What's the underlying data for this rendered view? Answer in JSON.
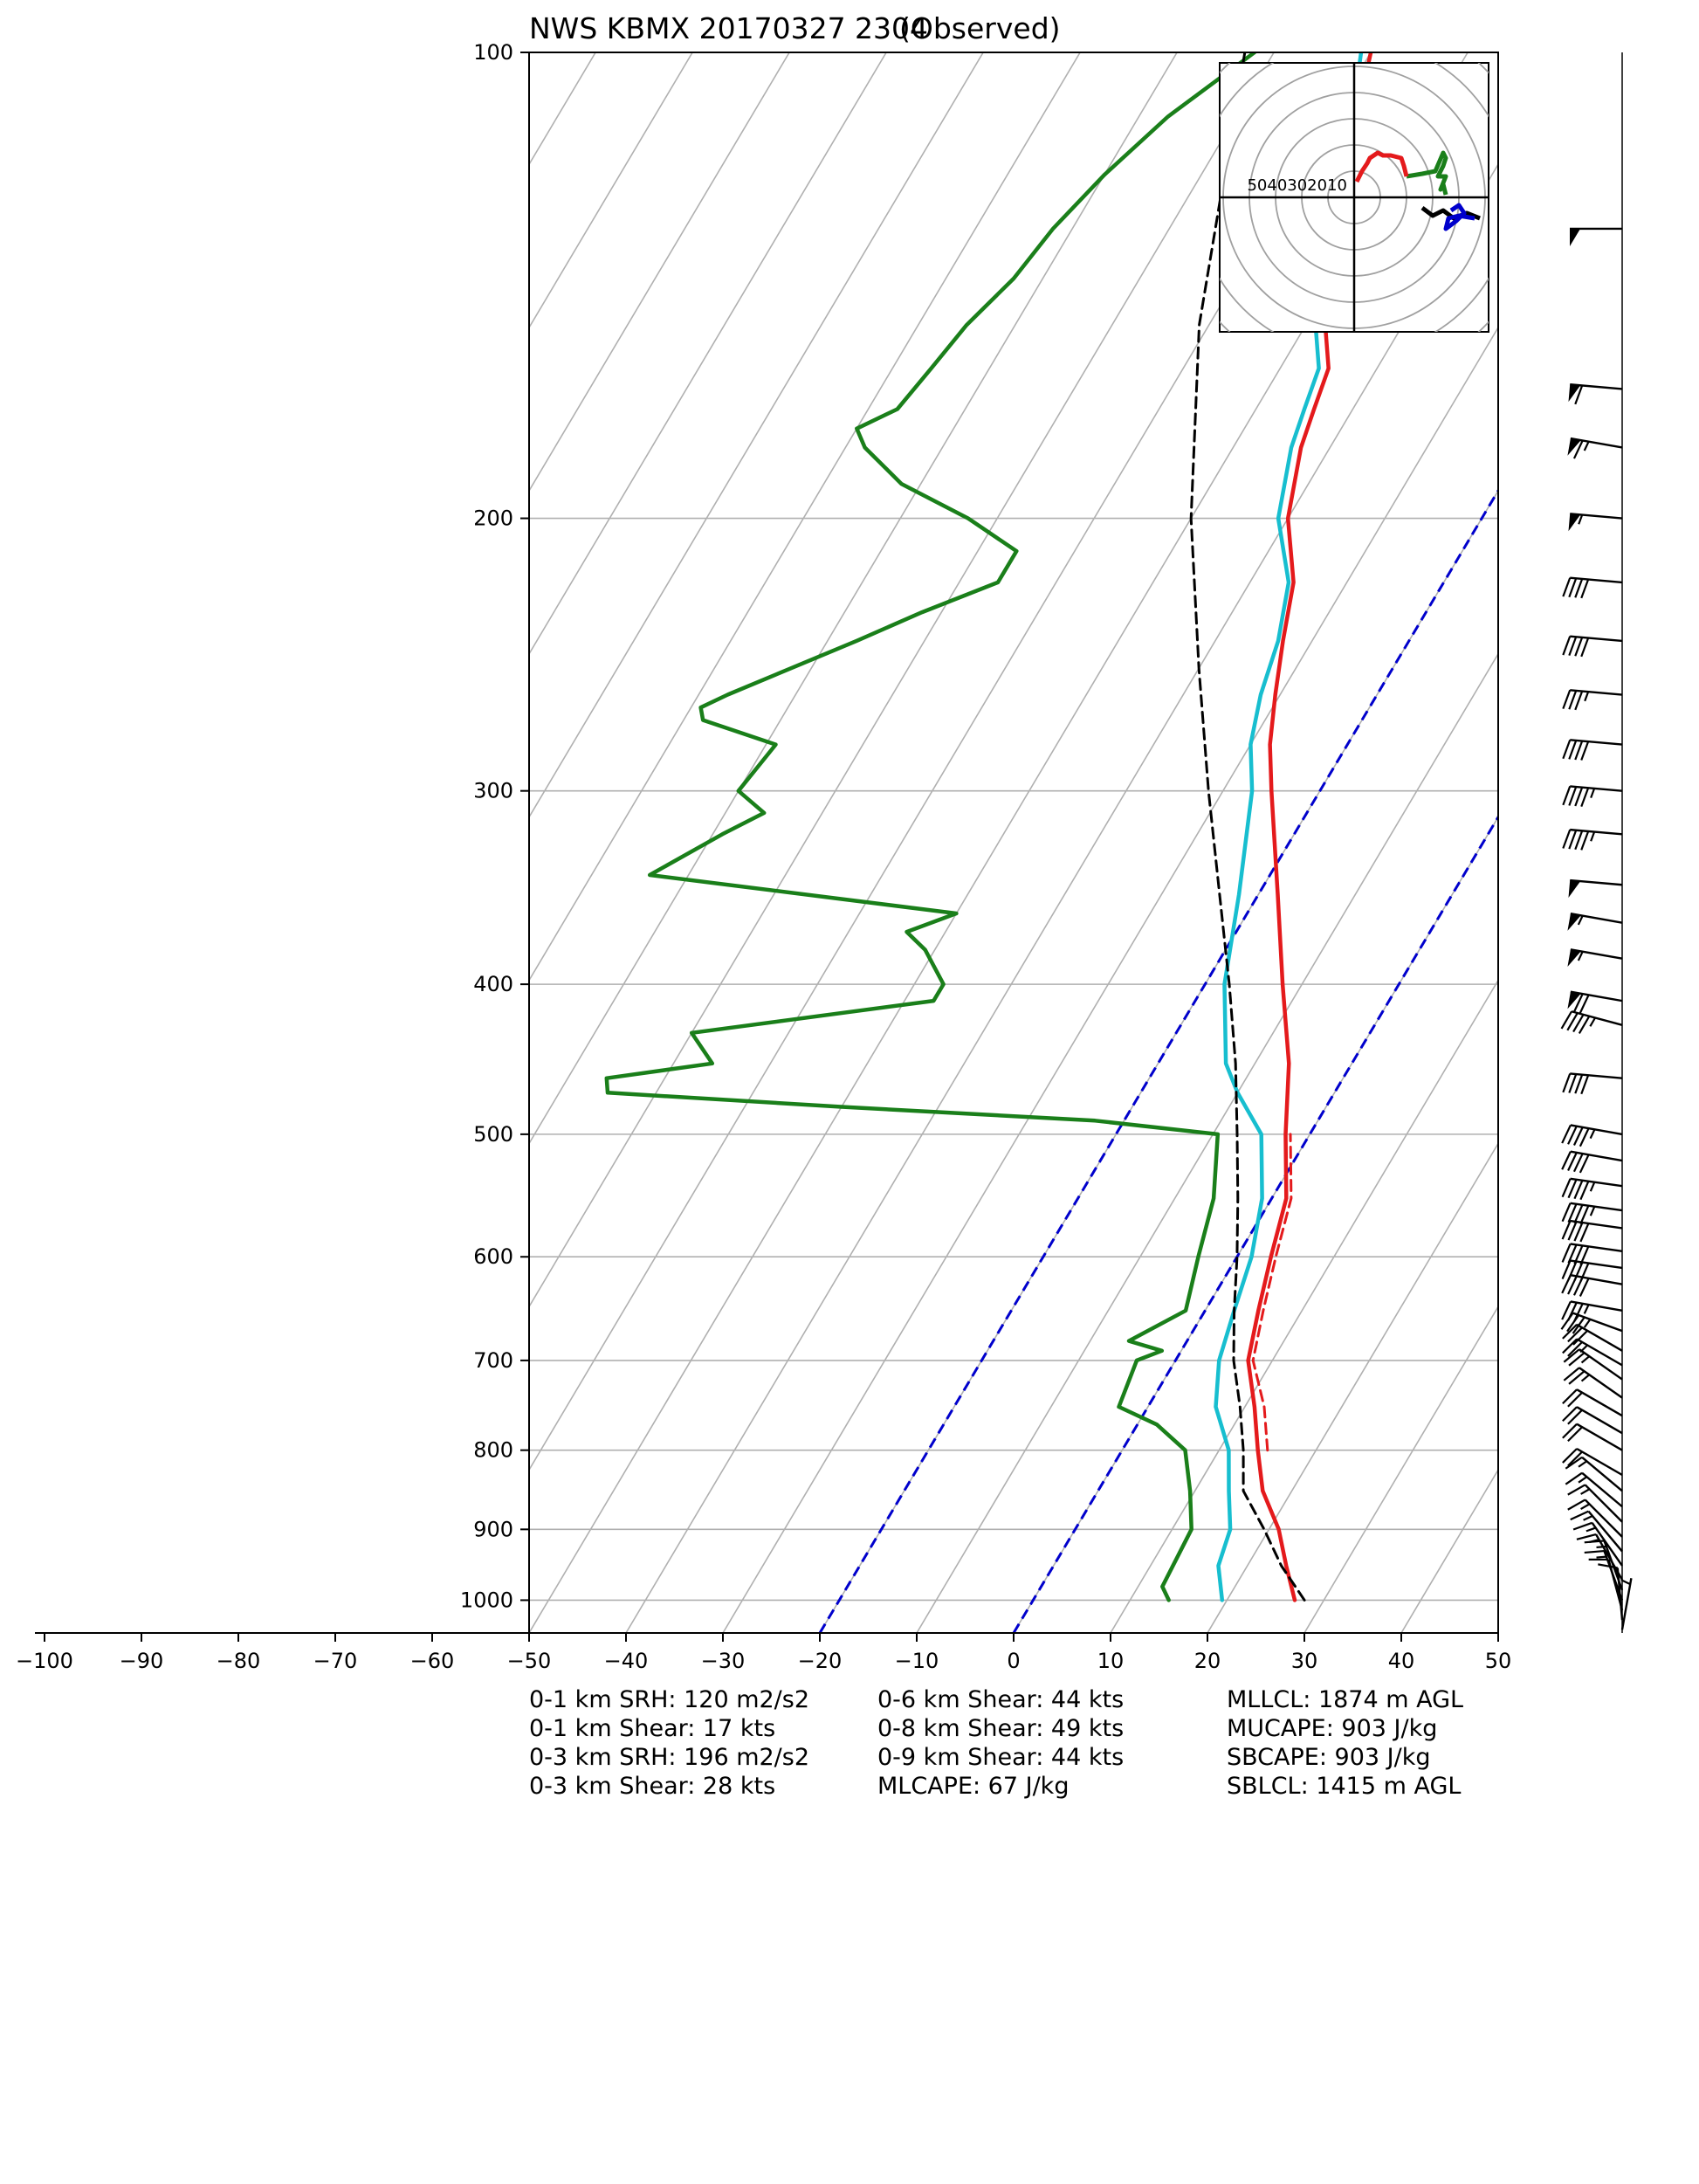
{
  "chart_data": {
    "type": "line",
    "title": "NWS KBMX 20170327 2304",
    "subtitle": "(Observed)",
    "xlabel": "",
    "ylabel": "",
    "x_ticks": [
      -100,
      -90,
      -80,
      -70,
      -60,
      -50,
      -40,
      -30,
      -20,
      -10,
      0,
      10,
      20,
      30,
      40,
      50
    ],
    "x_tick_labels": [
      "−100",
      "−90",
      "−80",
      "−70",
      "−60",
      "−50",
      "−40",
      "−30",
      "−20",
      "−10",
      "0",
      "10",
      "20",
      "30",
      "40",
      "50"
    ],
    "y_ticks": [
      100,
      200,
      300,
      400,
      500,
      600,
      700,
      800,
      900,
      1000
    ],
    "y_tick_labels": [
      "100",
      "200",
      "300",
      "400",
      "500",
      "600",
      "700",
      "800",
      "900",
      "1000"
    ],
    "xlim": [
      -50,
      50
    ],
    "ylim_pressure": [
      1050,
      100
    ],
    "y_scale": "log",
    "skew": true,
    "grid": true,
    "series": [
      {
        "color": "#e41a1c",
        "values": [
          [
            1000,
            27
          ],
          [
            950,
            24
          ],
          [
            900,
            21
          ],
          [
            850,
            17
          ],
          [
            800,
            14
          ],
          [
            750,
            11
          ],
          [
            700,
            7.5
          ],
          [
            650,
            5.5
          ],
          [
            600,
            3.5
          ],
          [
            550,
            1.5
          ],
          [
            500,
            -2.5
          ],
          [
            450,
            -6.5
          ],
          [
            400,
            -12
          ],
          [
            350,
            -18
          ],
          [
            300,
            -25
          ],
          [
            280,
            -28
          ],
          [
            260,
            -30.5
          ],
          [
            240,
            -33
          ],
          [
            220,
            -35.5
          ],
          [
            200,
            -40
          ],
          [
            180,
            -43
          ],
          [
            170,
            -44
          ],
          [
            160,
            -45
          ],
          [
            150,
            -48
          ],
          [
            140,
            -50
          ],
          [
            130,
            -52.5
          ],
          [
            120,
            -55
          ],
          [
            110,
            -57.5
          ],
          [
            100,
            -60
          ]
        ]
      },
      {
        "color": "#e41a1c",
        "dash": true,
        "values": [
          [
            800,
            15
          ],
          [
            750,
            12
          ],
          [
            700,
            8
          ],
          [
            650,
            6
          ],
          [
            600,
            4
          ],
          [
            550,
            2
          ],
          [
            500,
            -2
          ]
        ]
      },
      {
        "color": "#17becf",
        "values": [
          [
            1000,
            19.5
          ],
          [
            950,
            17
          ],
          [
            900,
            16
          ],
          [
            850,
            13.5
          ],
          [
            800,
            11
          ],
          [
            750,
            7
          ],
          [
            700,
            4.5
          ],
          [
            650,
            3
          ],
          [
            600,
            1.5
          ],
          [
            550,
            -1
          ],
          [
            500,
            -5
          ],
          [
            470,
            -10
          ],
          [
            450,
            -13
          ],
          [
            400,
            -18
          ],
          [
            350,
            -22
          ],
          [
            300,
            -27
          ],
          [
            280,
            -30
          ],
          [
            260,
            -32
          ],
          [
            240,
            -33.5
          ],
          [
            220,
            -36
          ],
          [
            200,
            -41
          ],
          [
            180,
            -44
          ],
          [
            170,
            -45
          ],
          [
            160,
            -46
          ],
          [
            150,
            -49
          ],
          [
            140,
            -51
          ],
          [
            130,
            -54
          ],
          [
            120,
            -56
          ],
          [
            110,
            -58
          ],
          [
            100,
            -61
          ]
        ]
      },
      {
        "color": "#1a7f1a",
        "values": [
          [
            1000,
            14
          ],
          [
            980,
            12.5
          ],
          [
            900,
            12
          ],
          [
            850,
            9.5
          ],
          [
            800,
            6.5
          ],
          [
            770,
            2
          ],
          [
            750,
            -3
          ],
          [
            700,
            -4
          ],
          [
            690,
            -2
          ],
          [
            680,
            -6
          ],
          [
            650,
            -2
          ],
          [
            600,
            -4
          ],
          [
            550,
            -6
          ],
          [
            500,
            -9.5
          ],
          [
            490,
            -23
          ],
          [
            480,
            -50
          ],
          [
            470,
            -75
          ],
          [
            460,
            -76
          ],
          [
            450,
            -66
          ],
          [
            430,
            -70
          ],
          [
            410,
            -47
          ],
          [
            400,
            -47
          ],
          [
            380,
            -51
          ],
          [
            370,
            -54
          ],
          [
            360,
            -50
          ],
          [
            340,
            -84
          ],
          [
            320,
            -79
          ],
          [
            310,
            -76
          ],
          [
            300,
            -80
          ],
          [
            280,
            -79
          ],
          [
            270,
            -88
          ],
          [
            265,
            -89
          ],
          [
            260,
            -87
          ],
          [
            240,
            -77
          ],
          [
            230,
            -72
          ],
          [
            220,
            -66
          ],
          [
            210,
            -66
          ],
          [
            200,
            -73
          ],
          [
            190,
            -82
          ],
          [
            180,
            -88
          ],
          [
            175,
            -90
          ],
          [
            170,
            -87
          ],
          [
            160,
            -86
          ],
          [
            150,
            -85
          ],
          [
            140,
            -83
          ],
          [
            130,
            -82
          ],
          [
            120,
            -80
          ],
          [
            110,
            -77
          ],
          [
            100,
            -72
          ]
        ]
      },
      {
        "color": "#000000",
        "dash": true,
        "values": [
          [
            1000,
            28
          ],
          [
            950,
            23.5
          ],
          [
            900,
            19.5
          ],
          [
            850,
            15
          ],
          [
            800,
            12.5
          ],
          [
            750,
            9.5
          ],
          [
            700,
            6
          ],
          [
            650,
            3
          ],
          [
            600,
            0
          ],
          [
            550,
            -3.5
          ],
          [
            500,
            -7.5
          ],
          [
            450,
            -12
          ],
          [
            400,
            -17.5
          ],
          [
            350,
            -24
          ],
          [
            300,
            -31.5
          ],
          [
            250,
            -40
          ],
          [
            200,
            -50
          ],
          [
            150,
            -61
          ],
          [
            100,
            -73
          ]
        ]
      }
    ],
    "reference_lines": {
      "color": "#0000cc",
      "dash": true,
      "isotherm_label_values": [
        -20,
        0
      ]
    },
    "hodograph": {
      "ring_labels": [
        "50",
        "40",
        "30",
        "20",
        "10"
      ],
      "ring_max_kts": 50,
      "segments": [
        {
          "color": "#000000",
          "points": [
            [
              26,
              -4
            ],
            [
              30,
              -7
            ],
            [
              34,
              -5
            ],
            [
              38,
              -8
            ],
            [
              43,
              -6
            ],
            [
              48,
              -8
            ]
          ]
        },
        {
          "color": "#0000cc",
          "points": [
            [
              37,
              -5
            ],
            [
              40,
              -3
            ],
            [
              42,
              -6
            ],
            [
              39,
              -9
            ],
            [
              35,
              -12
            ],
            [
              36,
              -8
            ],
            [
              40,
              -7
            ],
            [
              46,
              -8
            ]
          ]
        },
        {
          "color": "#1a7f1a",
          "points": [
            [
              35,
              1
            ],
            [
              34,
              5
            ],
            [
              33,
              3
            ],
            [
              35,
              8
            ],
            [
              32,
              8
            ],
            [
              34,
              12
            ],
            [
              35,
              15
            ],
            [
              34,
              17
            ],
            [
              31,
              10
            ],
            [
              26,
              9
            ],
            [
              20,
              8
            ]
          ]
        },
        {
          "color": "#e41a1c",
          "points": [
            [
              20,
              8
            ],
            [
              19,
              12
            ],
            [
              18,
              15
            ],
            [
              14,
              16
            ],
            [
              11,
              16
            ],
            [
              9,
              17
            ],
            [
              6,
              15
            ],
            [
              5,
              13
            ],
            [
              3,
              10
            ],
            [
              1,
              6
            ]
          ]
        }
      ]
    },
    "wind_barbs": [
      {
        "p": 130,
        "spd": 50,
        "dir": 270
      },
      {
        "p": 165,
        "spd": 60,
        "dir": 275
      },
      {
        "p": 180,
        "spd": 65,
        "dir": 280
      },
      {
        "p": 200,
        "spd": 55,
        "dir": 275
      },
      {
        "p": 220,
        "spd": 40,
        "dir": 275
      },
      {
        "p": 240,
        "spd": 40,
        "dir": 275
      },
      {
        "p": 260,
        "spd": 35,
        "dir": 275
      },
      {
        "p": 280,
        "spd": 40,
        "dir": 275
      },
      {
        "p": 300,
        "spd": 45,
        "dir": 275
      },
      {
        "p": 320,
        "spd": 45,
        "dir": 275
      },
      {
        "p": 345,
        "spd": 50,
        "dir": 275
      },
      {
        "p": 365,
        "spd": 55,
        "dir": 280
      },
      {
        "p": 385,
        "spd": 55,
        "dir": 280
      },
      {
        "p": 410,
        "spd": 70,
        "dir": 280
      },
      {
        "p": 425,
        "spd": 45,
        "dir": 285
      },
      {
        "p": 460,
        "spd": 40,
        "dir": 275
      },
      {
        "p": 500,
        "spd": 45,
        "dir": 280
      },
      {
        "p": 520,
        "spd": 40,
        "dir": 280
      },
      {
        "p": 540,
        "spd": 45,
        "dir": 278
      },
      {
        "p": 560,
        "spd": 45,
        "dir": 278
      },
      {
        "p": 575,
        "spd": 40,
        "dir": 278
      },
      {
        "p": 595,
        "spd": 40,
        "dir": 278
      },
      {
        "p": 610,
        "spd": 40,
        "dir": 278
      },
      {
        "p": 625,
        "spd": 40,
        "dir": 280
      },
      {
        "p": 650,
        "spd": 35,
        "dir": 280
      },
      {
        "p": 670,
        "spd": 35,
        "dir": 290
      },
      {
        "p": 690,
        "spd": 30,
        "dir": 300
      },
      {
        "p": 705,
        "spd": 25,
        "dir": 300
      },
      {
        "p": 720,
        "spd": 25,
        "dir": 305
      },
      {
        "p": 740,
        "spd": 25,
        "dir": 305
      },
      {
        "p": 760,
        "spd": 20,
        "dir": 300
      },
      {
        "p": 780,
        "spd": 20,
        "dir": 300
      },
      {
        "p": 800,
        "spd": 20,
        "dir": 300
      },
      {
        "p": 830,
        "spd": 20,
        "dir": 300
      },
      {
        "p": 850,
        "spd": 15,
        "dir": 310
      },
      {
        "p": 870,
        "spd": 15,
        "dir": 310
      },
      {
        "p": 890,
        "spd": 15,
        "dir": 315
      },
      {
        "p": 910,
        "spd": 15,
        "dir": 315
      },
      {
        "p": 930,
        "spd": 15,
        "dir": 320
      },
      {
        "p": 950,
        "spd": 15,
        "dir": 325
      },
      {
        "p": 970,
        "spd": 15,
        "dir": 330
      },
      {
        "p": 985,
        "spd": 15,
        "dir": 340
      },
      {
        "p": 1000,
        "spd": 15,
        "dir": 340
      },
      {
        "p": 1015,
        "spd": 10,
        "dir": 345
      },
      {
        "p": 1030,
        "spd": 10,
        "dir": 355
      },
      {
        "p": 1045,
        "spd": 5,
        "dir": 10
      }
    ]
  },
  "stats": {
    "col1": [
      "0-1 km SRH: 120 m2/s2",
      "0-1 km Shear: 17 kts",
      "0-3 km SRH: 196 m2/s2",
      "0-3 km Shear: 28 kts"
    ],
    "col2": [
      "0-6 km Shear: 44 kts",
      "0-8 km Shear: 49 kts",
      "0-9 km Shear: 44 kts",
      "MLCAPE: 67 J/kg"
    ],
    "col3": [
      "MLLCL: 1874 m AGL",
      "MUCAPE: 903 J/kg",
      "SBCAPE: 903 J/kg",
      "SBLCL: 1415 m AGL"
    ]
  }
}
